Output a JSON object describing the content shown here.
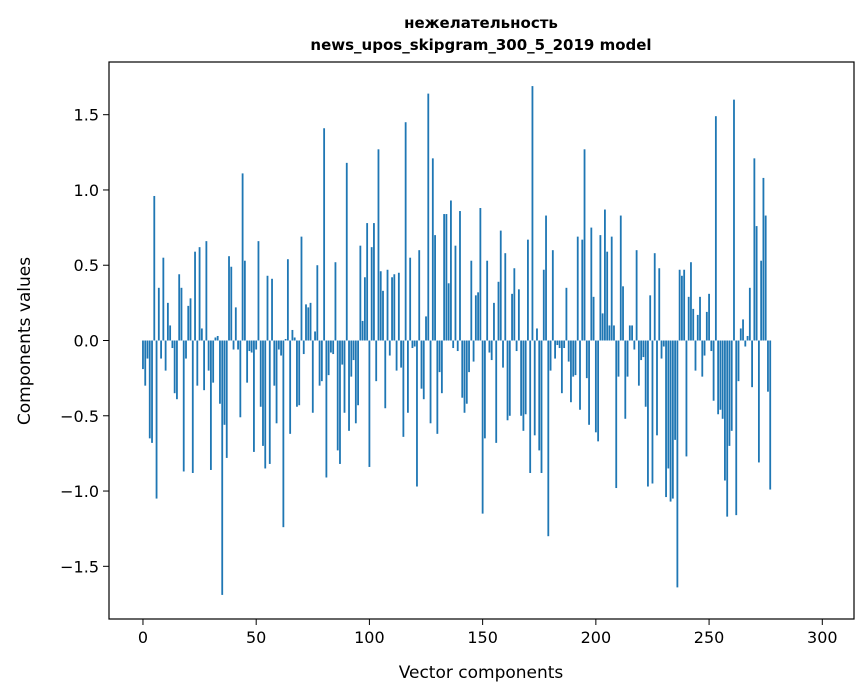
{
  "chart_data": {
    "type": "bar",
    "title": "нежелательность",
    "subtitle": "news_upos_skipgram_300_5_2019 model",
    "xlabel": "Vector components",
    "ylabel": "Components values",
    "xlim": [
      -15,
      314
    ],
    "ylim": [
      -1.85,
      1.85
    ],
    "xticks": [
      0,
      50,
      100,
      150,
      200,
      250,
      300
    ],
    "yticks": [
      -1.5,
      -1.0,
      -0.5,
      0.0,
      0.5,
      1.0,
      1.5
    ],
    "ytick_labels": [
      "−1.5",
      "−1.0",
      "−0.5",
      "0.0",
      "0.5",
      "1.0",
      "1.5"
    ],
    "xtick_labels": [
      "0",
      "50",
      "100",
      "150",
      "200",
      "250",
      "300"
    ],
    "grid": false,
    "bar_color": "#1f77b4",
    "values": [
      -0.19,
      -0.3,
      -0.12,
      -0.65,
      -0.68,
      0.96,
      -1.05,
      0.35,
      -0.12,
      0.55,
      -0.2,
      0.25,
      0.1,
      -0.05,
      -0.35,
      -0.39,
      0.44,
      0.35,
      -0.87,
      -0.12,
      0.23,
      0.28,
      -0.88,
      0.59,
      -0.3,
      0.62,
      0.08,
      -0.33,
      0.66,
      -0.2,
      -0.86,
      -0.28,
      0.02,
      0.03,
      -0.42,
      -1.69,
      -0.56,
      -0.78,
      0.56,
      0.49,
      -0.06,
      0.22,
      -0.06,
      -0.51,
      1.11,
      0.53,
      -0.28,
      -0.07,
      -0.08,
      -0.74,
      -0.06,
      0.66,
      -0.44,
      -0.7,
      -0.85,
      0.43,
      -0.82,
      0.41,
      -0.3,
      -0.55,
      -0.06,
      -0.1,
      -1.24,
      0.01,
      0.54,
      -0.62,
      0.07,
      0.02,
      -0.44,
      -0.43,
      0.69,
      -0.09,
      0.24,
      0.22,
      0.25,
      -0.48,
      0.06,
      0.5,
      -0.3,
      -0.27,
      1.41,
      -0.91,
      -0.23,
      -0.08,
      -0.09,
      0.52,
      -0.73,
      -0.82,
      -0.16,
      -0.48,
      1.18,
      -0.6,
      -0.24,
      -0.13,
      -0.55,
      -0.43,
      0.63,
      0.13,
      0.42,
      0.78,
      -0.84,
      0.62,
      0.78,
      -0.27,
      1.27,
      0.46,
      0.33,
      -0.45,
      0.47,
      -0.1,
      0.42,
      0.44,
      -0.2,
      0.45,
      -0.18,
      -0.64,
      1.45,
      -0.48,
      0.55,
      -0.05,
      -0.04,
      -0.97,
      0.6,
      -0.32,
      -0.39,
      0.16,
      1.64,
      -0.55,
      1.21,
      0.7,
      -0.62,
      -0.21,
      -0.35,
      0.84,
      0.84,
      0.38,
      0.93,
      -0.05,
      0.63,
      -0.07,
      0.86,
      -0.38,
      -0.48,
      -0.42,
      -0.21,
      0.53,
      -0.14,
      0.3,
      0.32,
      0.88,
      -1.15,
      -0.65,
      0.53,
      -0.08,
      -0.13,
      0.25,
      -0.68,
      0.39,
      0.73,
      -0.18,
      0.58,
      -0.53,
      -0.5,
      0.31,
      0.48,
      -0.07,
      0.34,
      -0.5,
      -0.6,
      -0.49,
      0.67,
      -0.88,
      1.69,
      -0.63,
      0.08,
      -0.73,
      -0.88,
      0.47,
      0.83,
      -1.3,
      -0.2,
      0.6,
      -0.12,
      -0.03,
      -0.05,
      -0.35,
      -0.05,
      0.35,
      -0.14,
      -0.41,
      -0.24,
      -0.23,
      0.69,
      -0.46,
      0.67,
      1.27,
      -0.25,
      -0.56,
      0.75,
      0.29,
      -0.61,
      -0.67,
      0.7,
      0.18,
      0.87,
      0.59,
      0.1,
      0.69,
      0.1,
      -0.98,
      -0.24,
      0.83,
      0.36,
      -0.52,
      -0.24,
      0.1,
      0.1,
      -0.06,
      0.6,
      -0.3,
      -0.13,
      -0.11,
      -0.44,
      -0.97,
      0.3,
      -0.95,
      0.58,
      -0.63,
      0.48,
      -0.12,
      -0.04,
      -1.04,
      -0.85,
      -1.07,
      -1.05,
      -0.66,
      -1.64,
      0.47,
      0.43,
      0.47,
      -0.77,
      0.29,
      0.52,
      0.21,
      -0.2,
      0.17,
      0.29,
      -0.24,
      -0.1,
      0.19,
      0.31,
      -0.07,
      -0.4,
      1.49,
      -0.49,
      -0.46,
      -0.52,
      -0.93,
      -1.17,
      -0.7,
      -0.6,
      1.6,
      -1.16,
      -0.27,
      0.08,
      0.14,
      -0.04,
      0.03,
      0.35,
      -0.31,
      1.21,
      0.76,
      -0.81,
      0.53,
      1.08,
      0.83,
      -0.34,
      -0.99
    ]
  }
}
